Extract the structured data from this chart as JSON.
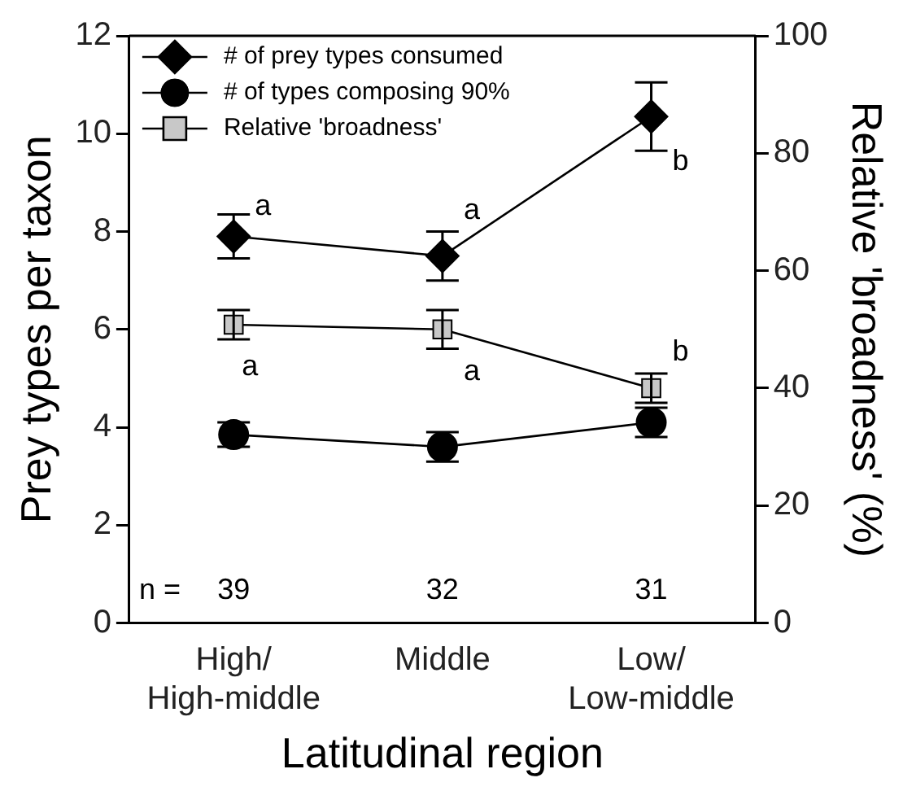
{
  "chart_data": {
    "type": "line",
    "xlabel": "Latitudinal region",
    "ylabel": "Prey types per taxon",
    "y2label": "Relative 'broadness' (%)",
    "categories": [
      "High/\nHigh-middle",
      "Middle",
      "Low/\nLow-middle"
    ],
    "series": [
      {
        "name": "# of prey types consumed",
        "color": "#000000",
        "marker": "diamond",
        "values": [
          7.9,
          7.5,
          10.35
        ],
        "errors": [
          0.45,
          0.5,
          0.7
        ]
      },
      {
        "name": "# of types composing 90%",
        "color": "#000000",
        "marker": "circle",
        "values": [
          3.85,
          3.6,
          4.1
        ],
        "errors": [
          0.25,
          0.3,
          0.3
        ]
      },
      {
        "name": "Relative 'broadness'",
        "color": "#c8c8c8",
        "marker": "square",
        "axis": "y2",
        "values": [
          50.8,
          50,
          40
        ],
        "errors": [
          2.5,
          3.3,
          2.5
        ]
      }
    ],
    "ylim": [
      0,
      12
    ],
    "yticks": [
      0,
      2,
      4,
      6,
      8,
      10,
      12
    ],
    "y2lim": [
      0,
      100
    ],
    "y2ticks": [
      0,
      20,
      40,
      60,
      80,
      100
    ],
    "annotations": [
      "a",
      "a",
      "b",
      "a",
      "a",
      "b",
      "n =",
      "39",
      "32",
      "31"
    ],
    "grid": false,
    "legend": "top left",
    "line_style": "solid"
  }
}
